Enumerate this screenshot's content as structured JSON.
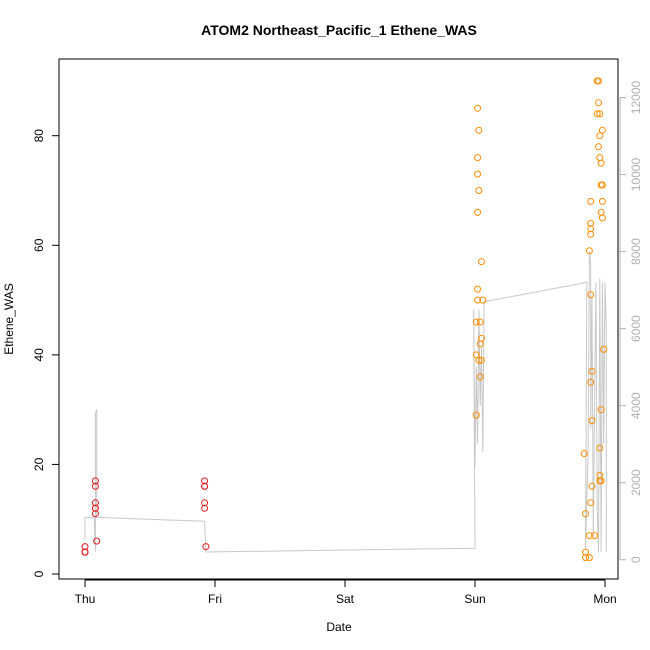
{
  "chart_data": {
    "type": "scatter",
    "title": "ATOM2 Northeast_Pacific_1 Ethene_WAS",
    "xlabel": "Date",
    "ylabel": "Ethene_WAS",
    "x_ticks": [
      "Thu",
      "Fri",
      "Sat",
      "Sun",
      "Mon"
    ],
    "x_tick_days": [
      0,
      1,
      2,
      3,
      4
    ],
    "xlim_days": [
      -0.2,
      4.1
    ],
    "ylim": [
      0,
      94
    ],
    "y_ticks": [
      0,
      20,
      40,
      60,
      80
    ],
    "y2_ticks": [
      0,
      2000,
      4000,
      6000,
      8000,
      10000,
      12000
    ],
    "y2lim": [
      -500,
      13000
    ],
    "grid": false,
    "legend": "none",
    "colors": {
      "red_points": "#e41a1c",
      "orange_points": "#ff8c00",
      "altitude_line": "#c8c8c8",
      "right_axis": "#b0b0b0"
    },
    "series": [
      {
        "color": "#e41a1c",
        "points": [
          {
            "x": 0.0,
            "y": 4
          },
          {
            "x": 0.0,
            "y": 4
          },
          {
            "x": 0.0,
            "y": 5
          },
          {
            "x": 0.0,
            "y": 4
          },
          {
            "x": 0.08,
            "y": 17
          },
          {
            "x": 0.08,
            "y": 16
          },
          {
            "x": 0.08,
            "y": 13
          },
          {
            "x": 0.08,
            "y": 12
          },
          {
            "x": 0.08,
            "y": 12
          },
          {
            "x": 0.08,
            "y": 11
          },
          {
            "x": 0.09,
            "y": 6
          },
          {
            "x": 0.92,
            "y": 17
          },
          {
            "x": 0.92,
            "y": 16
          },
          {
            "x": 0.92,
            "y": 16
          },
          {
            "x": 0.92,
            "y": 13
          },
          {
            "x": 0.92,
            "y": 12
          },
          {
            "x": 0.93,
            "y": 5
          }
        ]
      },
      {
        "color": "#ff8c00",
        "points": [
          {
            "x": 3.02,
            "y": 85
          },
          {
            "x": 3.03,
            "y": 81
          },
          {
            "x": 3.02,
            "y": 76
          },
          {
            "x": 3.02,
            "y": 73
          },
          {
            "x": 3.03,
            "y": 70
          },
          {
            "x": 3.02,
            "y": 66
          },
          {
            "x": 3.05,
            "y": 57
          },
          {
            "x": 3.02,
            "y": 52
          },
          {
            "x": 3.02,
            "y": 50
          },
          {
            "x": 3.06,
            "y": 50
          },
          {
            "x": 3.01,
            "y": 46
          },
          {
            "x": 3.04,
            "y": 46
          },
          {
            "x": 3.05,
            "y": 43
          },
          {
            "x": 3.04,
            "y": 42
          },
          {
            "x": 3.01,
            "y": 40
          },
          {
            "x": 3.03,
            "y": 39
          },
          {
            "x": 3.05,
            "y": 39
          },
          {
            "x": 3.04,
            "y": 36
          },
          {
            "x": 3.01,
            "y": 29
          },
          {
            "x": 3.94,
            "y": 90
          },
          {
            "x": 3.95,
            "y": 90
          },
          {
            "x": 3.95,
            "y": 86
          },
          {
            "x": 3.94,
            "y": 84
          },
          {
            "x": 3.96,
            "y": 84
          },
          {
            "x": 3.98,
            "y": 81
          },
          {
            "x": 3.96,
            "y": 80
          },
          {
            "x": 3.95,
            "y": 78
          },
          {
            "x": 3.96,
            "y": 76
          },
          {
            "x": 3.97,
            "y": 75
          },
          {
            "x": 3.97,
            "y": 71
          },
          {
            "x": 3.98,
            "y": 71
          },
          {
            "x": 3.89,
            "y": 68
          },
          {
            "x": 3.98,
            "y": 68
          },
          {
            "x": 3.97,
            "y": 66
          },
          {
            "x": 3.98,
            "y": 65
          },
          {
            "x": 3.89,
            "y": 64
          },
          {
            "x": 3.89,
            "y": 63
          },
          {
            "x": 3.89,
            "y": 62
          },
          {
            "x": 3.88,
            "y": 59
          },
          {
            "x": 3.89,
            "y": 51
          },
          {
            "x": 3.99,
            "y": 41
          },
          {
            "x": 3.9,
            "y": 37
          },
          {
            "x": 3.89,
            "y": 35
          },
          {
            "x": 3.97,
            "y": 30
          },
          {
            "x": 3.9,
            "y": 28
          },
          {
            "x": 3.96,
            "y": 23
          },
          {
            "x": 3.84,
            "y": 22
          },
          {
            "x": 3.96,
            "y": 18
          },
          {
            "x": 3.97,
            "y": 17
          },
          {
            "x": 3.96,
            "y": 17
          },
          {
            "x": 3.9,
            "y": 16
          },
          {
            "x": 3.89,
            "y": 13
          },
          {
            "x": 3.85,
            "y": 11
          },
          {
            "x": 3.88,
            "y": 7
          },
          {
            "x": 3.92,
            "y": 7
          },
          {
            "x": 3.85,
            "y": 4
          },
          {
            "x": 3.85,
            "y": 3
          },
          {
            "x": 3.88,
            "y": 3
          }
        ]
      }
    ],
    "altitude_line": [
      [
        0.0,
        500
      ],
      [
        0.0,
        1100
      ],
      [
        0.07,
        1100
      ],
      [
        0.08,
        200
      ],
      [
        0.08,
        3800
      ],
      [
        0.09,
        3900
      ],
      [
        0.09,
        1100
      ],
      [
        0.92,
        1000
      ],
      [
        0.93,
        200
      ],
      [
        3.0,
        300
      ],
      [
        2.99,
        6500
      ],
      [
        3.0,
        2400
      ],
      [
        3.01,
        5000
      ],
      [
        3.02,
        3000
      ],
      [
        3.03,
        6500
      ],
      [
        3.04,
        4000
      ],
      [
        3.05,
        5500
      ],
      [
        3.06,
        2800
      ],
      [
        3.07,
        6700
      ],
      [
        3.86,
        7200
      ],
      [
        3.85,
        300
      ],
      [
        3.87,
        2800
      ],
      [
        3.88,
        8000
      ],
      [
        3.89,
        7600
      ],
      [
        3.89,
        3400
      ],
      [
        3.9,
        6800
      ],
      [
        3.91,
        600
      ],
      [
        3.92,
        4200
      ],
      [
        3.93,
        7200
      ],
      [
        3.94,
        1300
      ],
      [
        3.95,
        200
      ],
      [
        3.96,
        7300
      ],
      [
        3.97,
        200
      ],
      [
        3.98,
        7200
      ],
      [
        3.99,
        3000
      ],
      [
        4.0,
        7200
      ],
      [
        4.01,
        6000
      ],
      [
        4.01,
        200
      ]
    ]
  }
}
